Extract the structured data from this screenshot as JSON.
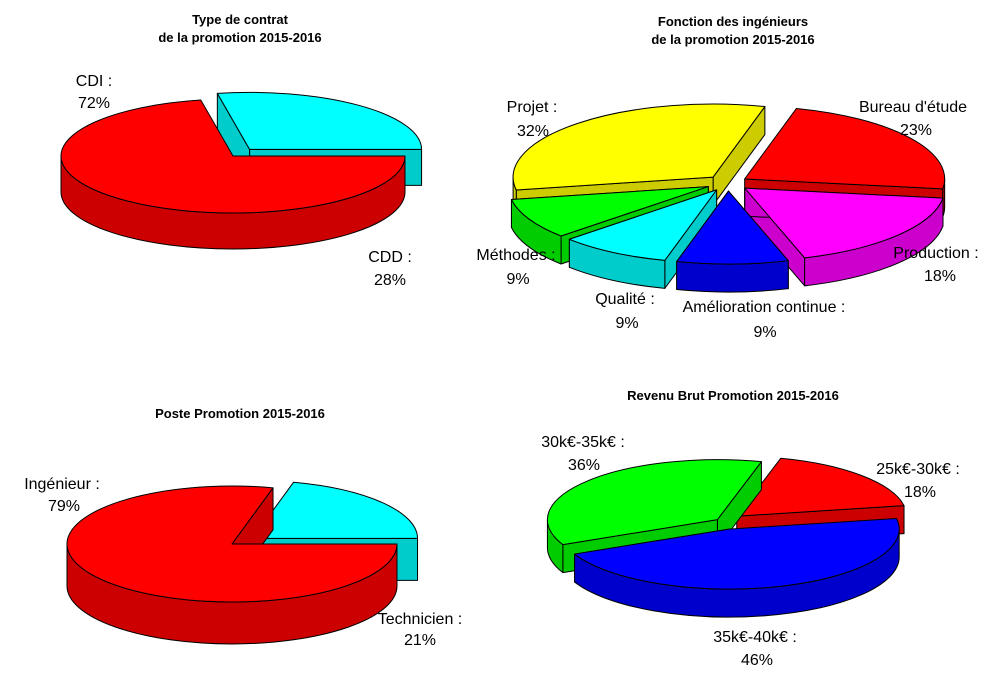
{
  "chart_data": [
    {
      "type": "pie",
      "title": [
        "Type de contrat",
        "de la promotion 2015-2016"
      ],
      "slices": [
        {
          "label": "CDI :",
          "percent": "72%",
          "value": 72,
          "color": "#ff0000",
          "side": "#cc0000"
        },
        {
          "label": "CDD :",
          "percent": "28%",
          "value": 28,
          "color": "#00ffff",
          "side": "#00cccc"
        }
      ]
    },
    {
      "type": "pie",
      "title": [
        "Fonction des ingénieurs",
        "de la promotion 2015-2016"
      ],
      "slices": [
        {
          "label": "Bureau d'étude",
          "percent": "23%",
          "value": 23,
          "color": "#ff0000",
          "side": "#cc0000"
        },
        {
          "label": "Production :",
          "percent": "18%",
          "value": 18,
          "color": "#ff00ff",
          "side": "#cc00cc"
        },
        {
          "label": "Amélioration continue :",
          "percent": "9%",
          "value": 9,
          "color": "#0000ff",
          "side": "#0000cc"
        },
        {
          "label": "Qualité :",
          "percent": "9%",
          "value": 9,
          "color": "#00ffff",
          "side": "#00cccc"
        },
        {
          "label": "Méthodes :",
          "percent": "9%",
          "value": 9,
          "color": "#00ff00",
          "side": "#00cc00"
        },
        {
          "label": "Projet :",
          "percent": "32%",
          "value": 32,
          "color": "#ffff00",
          "side": "#cccc00"
        }
      ]
    },
    {
      "type": "pie",
      "title": [
        "Poste Promotion 2015-2016"
      ],
      "slices": [
        {
          "label": "Ingénieur :",
          "percent": "79%",
          "value": 79,
          "color": "#ff0000",
          "side": "#cc0000"
        },
        {
          "label": "Technicien :",
          "percent": "21%",
          "value": 21,
          "color": "#00ffff",
          "side": "#00cccc"
        }
      ]
    },
    {
      "type": "pie",
      "title": [
        "Revenu Brut Promotion 2015-2016"
      ],
      "slices": [
        {
          "label": "25k€-30k€ :",
          "percent": "18%",
          "value": 18,
          "color": "#ff0000",
          "side": "#cc0000"
        },
        {
          "label": "35k€-40k€ :",
          "percent": "46%",
          "value": 46,
          "color": "#0000ff",
          "side": "#0000cc"
        },
        {
          "label": "30k€-35k€ :",
          "percent": "36%",
          "value": 36,
          "color": "#00ff00",
          "side": "#00cc00"
        }
      ]
    }
  ]
}
